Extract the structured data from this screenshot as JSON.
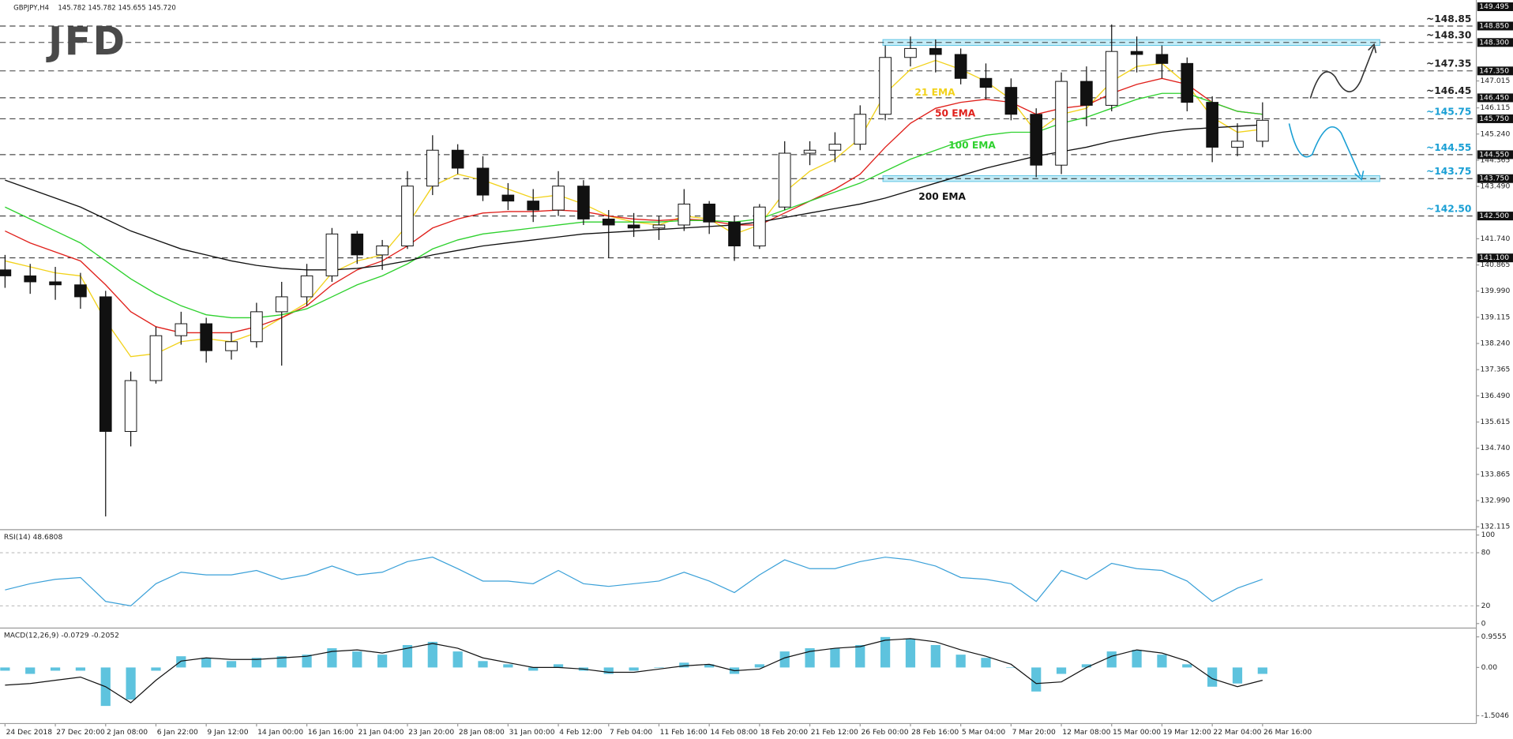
{
  "chart_data": {
    "type": "candlestick",
    "symbol": "GBPJPY,H4",
    "quote": "145.782 145.782 145.655 145.720",
    "logo": "JFD",
    "xlim": [
      -0.2,
      58.5
    ],
    "xticks": [
      {
        "value": 0,
        "label": "24 Dec 2018"
      },
      {
        "value": 2,
        "label": "27 Dec 20:00"
      },
      {
        "value": 4,
        "label": "2 Jan 08:00"
      },
      {
        "value": 6,
        "label": "6 Jan 22:00"
      },
      {
        "value": 8,
        "label": "9 Jan 12:00"
      },
      {
        "value": 10,
        "label": "14 Jan 00:00"
      },
      {
        "value": 12,
        "label": "16 Jan 16:00"
      },
      {
        "value": 14,
        "label": "21 Jan 04:00"
      },
      {
        "value": 16,
        "label": "23 Jan 20:00"
      },
      {
        "value": 18,
        "label": "28 Jan 08:00"
      },
      {
        "value": 20,
        "label": "31 Jan 00:00"
      },
      {
        "value": 22,
        "label": "4 Feb 12:00"
      },
      {
        "value": 24,
        "label": "7 Feb 04:00"
      },
      {
        "value": 26,
        "label": "11 Feb 16:00"
      },
      {
        "value": 28,
        "label": "14 Feb 08:00"
      },
      {
        "value": 30,
        "label": "18 Feb 20:00"
      },
      {
        "value": 32,
        "label": "21 Feb 12:00"
      },
      {
        "value": 34,
        "label": "26 Feb 00:00"
      },
      {
        "value": 36,
        "label": "28 Feb 16:00"
      },
      {
        "value": 38,
        "label": "5 Mar 04:00"
      },
      {
        "value": 40,
        "label": "7 Mar 20:00"
      },
      {
        "value": 42,
        "label": "12 Mar 08:00"
      },
      {
        "value": 44,
        "label": "15 Mar 00:00"
      },
      {
        "value": 46,
        "label": "19 Mar 12:00"
      },
      {
        "value": 48,
        "label": "22 Mar 04:00"
      },
      {
        "value": 50,
        "label": "26 Mar 16:00"
      }
    ],
    "ylim": [
      132.05,
      149.72
    ],
    "yticks": [
      132.115,
      {
        "value": 132.99,
        "label": "132.990"
      },
      133.865,
      {
        "value": 134.74,
        "label": "134.740"
      },
      135.615,
      {
        "value": 136.49,
        "label": "136.490"
      },
      137.365,
      {
        "value": 138.24,
        "label": "138.240"
      },
      139.115,
      {
        "value": 139.99,
        "label": "139.990"
      },
      140.865,
      {
        "value": 141.74,
        "label": "141.740"
      },
      {
        "value": 143.49,
        "label": "143.490"
      },
      144.365,
      {
        "value": 145.24,
        "label": "145.240"
      },
      146.115,
      147.015
    ],
    "levels": [
      {
        "value": 149.495,
        "label": "149.495",
        "line": false
      },
      {
        "value": 148.85,
        "label": "148.850",
        "annotation": "~148.85",
        "color": "#222222",
        "line": true
      },
      {
        "value": 148.3,
        "label": "148.300",
        "annotation": "~148.30",
        "color": "#222222",
        "line": true,
        "zone": true
      },
      {
        "value": 147.35,
        "label": "147.350",
        "annotation": "~147.35",
        "color": "#222222",
        "line": true
      },
      {
        "value": 146.45,
        "label": "146.450",
        "annotation": "~146.45",
        "color": "#222222",
        "line": true
      },
      {
        "value": 145.75,
        "label": "145.750",
        "annotation": "~145.75",
        "color": "#1a9fd4",
        "line": true
      },
      {
        "value": 144.55,
        "label": "144.550",
        "annotation": "~144.55",
        "color": "#1a9fd4",
        "line": true
      },
      {
        "value": 143.75,
        "label": "143.750",
        "annotation": "~143.75",
        "color": "#1a9fd4",
        "line": true,
        "zone": true
      },
      {
        "value": 142.5,
        "label": "142.500",
        "annotation": "~142.50",
        "color": "#1a9fd4",
        "line": true
      },
      {
        "value": 141.1,
        "label": "141.100",
        "line": true
      }
    ],
    "open": [
      140.7,
      140.5,
      140.3,
      140.2,
      139.8,
      135.3,
      137.0,
      138.5,
      138.9,
      138.0,
      138.3,
      139.3,
      139.8,
      140.5,
      141.9,
      141.2,
      141.5,
      143.5,
      144.7,
      144.1,
      143.2,
      143.0,
      142.7,
      143.5,
      142.4,
      142.2,
      142.1,
      142.2,
      142.9,
      142.3,
      141.5,
      142.8,
      144.6,
      144.7,
      144.9,
      145.9,
      147.8,
      148.1,
      147.9,
      147.1,
      146.8,
      145.9,
      144.2,
      147.0,
      146.2,
      148.0,
      147.9,
      147.6,
      146.3,
      144.8,
      145.0
    ],
    "high": [
      141.2,
      140.9,
      140.8,
      140.6,
      140.0,
      137.3,
      138.8,
      139.3,
      139.1,
      138.6,
      139.6,
      140.3,
      140.9,
      142.1,
      142.0,
      141.7,
      144.0,
      145.2,
      144.9,
      144.5,
      143.6,
      143.4,
      144.0,
      143.7,
      142.7,
      142.6,
      142.5,
      143.4,
      143.0,
      142.5,
      142.9,
      145.0,
      145.0,
      145.3,
      146.2,
      148.2,
      148.5,
      148.4,
      148.1,
      147.6,
      147.1,
      146.1,
      147.3,
      147.5,
      148.9,
      148.5,
      148.2,
      147.8,
      146.5,
      145.6,
      146.3
    ],
    "low": [
      140.1,
      139.9,
      139.7,
      139.4,
      132.46,
      134.8,
      136.9,
      138.2,
      137.6,
      137.7,
      138.1,
      137.5,
      139.5,
      140.3,
      140.9,
      140.7,
      141.4,
      143.2,
      143.9,
      143.0,
      142.7,
      142.3,
      142.5,
      142.2,
      141.1,
      141.8,
      141.7,
      142.0,
      141.9,
      141.0,
      141.4,
      142.7,
      144.2,
      144.3,
      144.7,
      145.7,
      147.5,
      147.3,
      146.9,
      146.4,
      145.7,
      143.8,
      143.9,
      145.5,
      146.0,
      147.3,
      147.1,
      146.0,
      144.3,
      144.5,
      144.8
    ],
    "close": [
      140.5,
      140.3,
      140.2,
      139.8,
      135.3,
      137.0,
      138.5,
      138.9,
      138.0,
      138.3,
      139.3,
      139.8,
      140.5,
      141.9,
      141.2,
      141.5,
      143.5,
      144.7,
      144.1,
      143.2,
      143.0,
      142.7,
      143.5,
      142.4,
      142.2,
      142.1,
      142.2,
      142.9,
      142.3,
      141.5,
      142.8,
      144.6,
      144.7,
      144.9,
      145.9,
      147.8,
      148.1,
      147.9,
      147.1,
      146.8,
      145.9,
      144.2,
      147.0,
      146.2,
      148.0,
      147.9,
      147.6,
      146.3,
      144.8,
      145.0,
      145.7
    ],
    "emas": [
      {
        "name": "21 EMA",
        "color": "#f2d21b",
        "values": [
          141.0,
          140.8,
          140.6,
          140.5,
          139.0,
          137.8,
          137.9,
          138.3,
          138.4,
          138.3,
          138.6,
          139.1,
          139.6,
          140.6,
          141.0,
          141.2,
          142.2,
          143.5,
          143.9,
          143.7,
          143.4,
          143.1,
          143.2,
          142.9,
          142.5,
          142.3,
          142.2,
          142.5,
          142.4,
          141.9,
          142.2,
          143.3,
          144.0,
          144.4,
          145.1,
          146.6,
          147.4,
          147.7,
          147.4,
          147.0,
          146.4,
          145.3,
          145.9,
          146.1,
          147.0,
          147.5,
          147.6,
          146.9,
          145.8,
          145.3,
          145.4
        ]
      },
      {
        "name": "50 EMA",
        "color": "#e0201b",
        "values": [
          142.0,
          141.6,
          141.3,
          141.0,
          140.2,
          139.3,
          138.8,
          138.6,
          138.6,
          138.6,
          138.8,
          139.1,
          139.5,
          140.2,
          140.7,
          141.0,
          141.5,
          142.1,
          142.4,
          142.6,
          142.65,
          142.65,
          142.7,
          142.65,
          142.5,
          142.4,
          142.35,
          142.4,
          142.35,
          142.2,
          142.2,
          142.6,
          143.0,
          143.4,
          143.9,
          144.8,
          145.6,
          146.1,
          146.3,
          146.4,
          146.3,
          145.9,
          146.1,
          146.2,
          146.6,
          146.9,
          147.1,
          146.9,
          146.3,
          146.0,
          145.9
        ]
      },
      {
        "name": "100 EMA",
        "color": "#2ed12e",
        "values": [
          142.8,
          142.4,
          142.0,
          141.6,
          141.0,
          140.4,
          139.9,
          139.5,
          139.2,
          139.1,
          139.1,
          139.2,
          139.4,
          139.8,
          140.2,
          140.5,
          140.9,
          141.4,
          141.7,
          141.9,
          142.0,
          142.1,
          142.2,
          142.3,
          142.3,
          142.3,
          142.3,
          142.35,
          142.35,
          142.3,
          142.4,
          142.7,
          143.0,
          143.3,
          143.6,
          144.0,
          144.4,
          144.7,
          145.0,
          145.2,
          145.3,
          145.3,
          145.6,
          145.8,
          146.1,
          146.4,
          146.6,
          146.6,
          146.3,
          146.0,
          145.9
        ]
      },
      {
        "name": "200 EMA",
        "color": "#111111",
        "values": [
          143.7,
          143.4,
          143.1,
          142.8,
          142.4,
          142.0,
          141.7,
          141.4,
          141.2,
          141.0,
          140.85,
          140.75,
          140.7,
          140.7,
          140.75,
          140.85,
          141.0,
          141.2,
          141.35,
          141.5,
          141.6,
          141.7,
          141.8,
          141.9,
          141.95,
          142.0,
          142.05,
          142.1,
          142.15,
          142.2,
          142.3,
          142.45,
          142.6,
          142.75,
          142.9,
          143.1,
          143.35,
          143.6,
          143.85,
          144.1,
          144.3,
          144.5,
          144.65,
          144.8,
          145.0,
          145.15,
          145.3,
          145.4,
          145.45,
          145.5,
          145.55
        ]
      }
    ],
    "rsi": {
      "title": "RSI(14) 48.6808",
      "color": "#3aa0d8",
      "ylim": [
        -4,
        105
      ],
      "yticks": [
        100,
        80,
        20,
        0
      ],
      "values": [
        38,
        45,
        50,
        52,
        25,
        20,
        45,
        58,
        55,
        55,
        60,
        50,
        55,
        65,
        55,
        58,
        70,
        75,
        62,
        48,
        48,
        45,
        60,
        45,
        42,
        45,
        48,
        58,
        48,
        35,
        55,
        72,
        62,
        62,
        70,
        75,
        72,
        65,
        52,
        50,
        45,
        25,
        60,
        50,
        68,
        62,
        60,
        48,
        25,
        40,
        50
      ]
    },
    "macd": {
      "title": "MACD(12,26,9) -0.0729 -0.2052",
      "color": "#42b8d8",
      "ylim": [
        -1.75,
        1.2
      ],
      "yticks": [
        0.9555,
        {
          "value": 0,
          "label": "0.00"
        },
        -1.5046
      ],
      "histogram": [
        -0.1,
        -0.2,
        -0.1,
        -0.1,
        -1.2,
        -1.0,
        -0.1,
        0.35,
        0.3,
        0.2,
        0.3,
        0.35,
        0.4,
        0.6,
        0.5,
        0.4,
        0.7,
        0.8,
        0.5,
        0.2,
        0.1,
        -0.1,
        0.1,
        -0.1,
        -0.2,
        -0.1,
        0.0,
        0.15,
        0.1,
        -0.2,
        0.1,
        0.5,
        0.6,
        0.6,
        0.7,
        0.95,
        0.9,
        0.7,
        0.4,
        0.3,
        0.0,
        -0.75,
        -0.2,
        0.1,
        0.5,
        0.55,
        0.4,
        0.1,
        -0.6,
        -0.5,
        -0.2
      ],
      "signal": [
        -0.55,
        -0.5,
        -0.4,
        -0.3,
        -0.6,
        -1.1,
        -0.4,
        0.2,
        0.3,
        0.25,
        0.25,
        0.3,
        0.35,
        0.5,
        0.55,
        0.45,
        0.6,
        0.75,
        0.6,
        0.3,
        0.15,
        0.0,
        0.0,
        -0.05,
        -0.15,
        -0.15,
        -0.05,
        0.05,
        0.1,
        -0.1,
        -0.05,
        0.3,
        0.5,
        0.6,
        0.65,
        0.85,
        0.9,
        0.8,
        0.55,
        0.35,
        0.1,
        -0.5,
        -0.45,
        0.0,
        0.35,
        0.55,
        0.45,
        0.2,
        -0.35,
        -0.6,
        -0.4
      ]
    }
  }
}
